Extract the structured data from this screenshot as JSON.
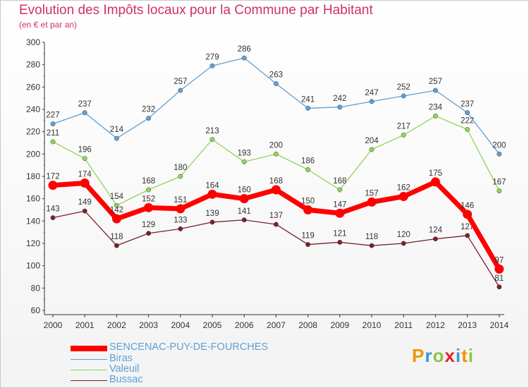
{
  "chart_data": {
    "type": "line",
    "title": "Evolution des Impôts locaux pour la Commune par Habitant",
    "subtitle": "(en € et par an)",
    "xlabel": "",
    "ylabel": "",
    "categories": [
      "2000",
      "2001",
      "2002",
      "2003",
      "2004",
      "2005",
      "2006",
      "2007",
      "2008",
      "2009",
      "2010",
      "2011",
      "2012",
      "2013",
      "2014"
    ],
    "ylim": [
      60,
      300
    ],
    "yticks": [
      60,
      80,
      100,
      120,
      140,
      160,
      180,
      200,
      220,
      240,
      260,
      280,
      300
    ],
    "grid": false,
    "legend_position": "bottom-left",
    "series": [
      {
        "name": "SENCENAC-PUY-DE-FOURCHES",
        "color": "#ff0000",
        "values": [
          172,
          174,
          142,
          152,
          151,
          164,
          160,
          168,
          150,
          147,
          157,
          162,
          175,
          146,
          97
        ]
      },
      {
        "name": "Biras",
        "color": "#5f9fd4",
        "values": [
          227,
          237,
          214,
          232,
          257,
          279,
          286,
          263,
          241,
          242,
          247,
          252,
          257,
          237,
          200
        ]
      },
      {
        "name": "Valeuil",
        "color": "#8fd45a",
        "values": [
          211,
          196,
          154,
          168,
          180,
          213,
          193,
          200,
          186,
          168,
          204,
          217,
          234,
          222,
          167
        ]
      },
      {
        "name": "Bussac",
        "color": "#7a1f2b",
        "values": [
          143,
          149,
          118,
          129,
          133,
          139,
          141,
          137,
          119,
          121,
          118,
          120,
          124,
          127,
          81
        ]
      }
    ]
  },
  "logo": {
    "text": "Proxiti",
    "letters": [
      "P",
      "r",
      "o",
      "x",
      "i",
      "t",
      "i"
    ]
  }
}
